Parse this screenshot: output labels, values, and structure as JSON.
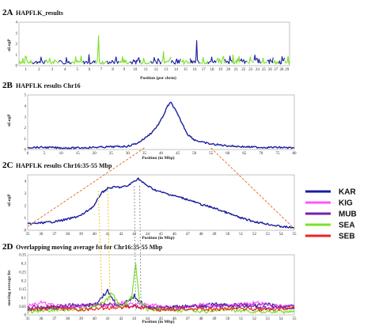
{
  "colors": {
    "blue": "#1a1f9c",
    "green": "#7be02a",
    "orange": "#e8641c",
    "gray": "#8a8a8a",
    "yellow": "#f0c020",
    "axis": "#9a9a9a"
  },
  "legend": {
    "items": [
      {
        "label": "KAR",
        "color": "#1a1f9c"
      },
      {
        "label": "KIG",
        "color": "#ff55ff"
      },
      {
        "label": "MUB",
        "color": "#7a1fa8"
      },
      {
        "label": "SEA",
        "color": "#7be02a"
      },
      {
        "label": "SEB",
        "color": "#ee2222"
      }
    ]
  },
  "chart_data": [
    {
      "panel": "2A",
      "type": "line",
      "title": "HAPFLK_results",
      "xlabel": "Position (per chrm)",
      "ylabel": "nLogP",
      "ylim": [
        0,
        4
      ],
      "yticks": [
        "0",
        "1",
        "2",
        "3",
        "4"
      ],
      "xticks": [
        "1",
        "2",
        "3",
        "4",
        "5",
        "6",
        "7",
        "8",
        "9",
        "10",
        "11",
        "12",
        "13",
        "14",
        "15",
        "16",
        "17",
        "18",
        "19",
        "20",
        "21",
        "22",
        "23",
        "24",
        "25",
        "26",
        "27",
        "28",
        "29"
      ],
      "chromosome_peaks": [
        1.6,
        1.2,
        1.1,
        0.9,
        1.0,
        1.2,
        4.1,
        1.3,
        1.0,
        1.0,
        1.1,
        1.0,
        1.8,
        1.0,
        1.0,
        3.8,
        1.2,
        1.0,
        1.1,
        1.3,
        1.0,
        1.1,
        1.0,
        1.0,
        1.0,
        1.0,
        1.1,
        1.3,
        1.2
      ]
    },
    {
      "panel": "2B",
      "type": "line",
      "title": "HAPFLK results Chr16",
      "xlabel": "Position (in Mbp)",
      "ylabel": "nLogP",
      "ylim": [
        0,
        5
      ],
      "xlim": [
        0,
        80
      ],
      "yticks": [
        "0",
        "1",
        "2",
        "3",
        "4",
        "5"
      ],
      "xticks": [
        "0",
        "5",
        "10",
        "15",
        "20",
        "25",
        "30",
        "35",
        "40",
        "45",
        "50",
        "55",
        "60",
        "65",
        "70",
        "75",
        "80"
      ],
      "x": [
        0,
        5,
        10,
        15,
        20,
        25,
        30,
        33,
        35,
        37,
        39,
        40,
        41,
        42,
        43,
        44,
        45,
        46,
        47,
        48,
        50,
        52,
        55,
        60,
        65,
        70,
        75,
        80
      ],
      "y": [
        0.2,
        0.2,
        0.15,
        0.15,
        0.2,
        0.25,
        0.3,
        0.6,
        1.0,
        1.5,
        2.2,
        2.7,
        3.3,
        4.0,
        4.3,
        3.8,
        3.2,
        2.6,
        2.0,
        1.4,
        0.9,
        0.7,
        0.5,
        0.35,
        0.25,
        0.2,
        0.2,
        0.15
      ]
    },
    {
      "panel": "2C",
      "type": "line",
      "title": "HAPFLK results Chr16:35-55 Mbp",
      "xlabel": "Position (in Mbp)",
      "ylabel": "nLogP",
      "ylim": [
        0,
        4.5
      ],
      "xlim": [
        35,
        55
      ],
      "yticks": [
        "0",
        "1",
        "2",
        "3",
        "4"
      ],
      "xticks": [
        "35",
        "36",
        "37",
        "38",
        "39",
        "40",
        "41",
        "42",
        "43",
        "44",
        "45",
        "46",
        "47",
        "48",
        "49",
        "50",
        "51",
        "52",
        "53",
        "54",
        "55"
      ],
      "x": [
        35,
        36,
        37,
        38,
        39,
        40,
        40.5,
        41,
        41.5,
        42,
        42.5,
        43,
        43.3,
        43.6,
        44,
        44.5,
        45,
        46,
        47,
        48,
        49,
        50,
        51,
        52,
        53,
        54,
        55
      ],
      "y": [
        0.5,
        0.6,
        0.7,
        0.9,
        1.2,
        2.0,
        3.0,
        3.4,
        3.5,
        3.5,
        3.6,
        4.0,
        4.2,
        3.9,
        3.6,
        3.3,
        3.1,
        2.8,
        2.5,
        2.1,
        1.8,
        1.4,
        1.0,
        0.7,
        0.5,
        0.3,
        0.2
      ]
    },
    {
      "panel": "2D",
      "type": "line",
      "title": "Overlapping moving average fst for Chr16:35-55 Mbp",
      "xlabel": "Position (in Mbp)",
      "ylabel": "moving average fst",
      "ylim": [
        0,
        0.35
      ],
      "xlim": [
        35,
        55
      ],
      "yticks": [
        "0",
        "0.05",
        "0.1",
        "0.15",
        "0.2",
        "0.25",
        "0.3",
        "0.35"
      ],
      "xticks": [
        "35",
        "36",
        "37",
        "38",
        "39",
        "40",
        "41",
        "42",
        "43",
        "44",
        "45",
        "46",
        "47",
        "48",
        "49",
        "50",
        "51",
        "52",
        "53",
        "54",
        "55"
      ],
      "series": [
        {
          "name": "KAR",
          "color": "#1a1f9c",
          "x": [
            35,
            37,
            39,
            40,
            41,
            41.5,
            42,
            43,
            44,
            45,
            47,
            49,
            51,
            53,
            55
          ],
          "y": [
            0.03,
            0.04,
            0.05,
            0.06,
            0.14,
            0.08,
            0.05,
            0.11,
            0.04,
            0.04,
            0.05,
            0.06,
            0.05,
            0.06,
            0.04
          ]
        },
        {
          "name": "KIG",
          "color": "#ff55ff",
          "x": [
            35,
            36,
            38,
            40,
            41,
            42,
            44,
            46,
            48,
            50,
            52,
            54,
            55
          ],
          "y": [
            0.05,
            0.07,
            0.04,
            0.06,
            0.05,
            0.07,
            0.06,
            0.04,
            0.06,
            0.05,
            0.07,
            0.05,
            0.06
          ]
        },
        {
          "name": "MUB",
          "color": "#7a1fa8",
          "x": [
            35,
            37,
            39,
            41,
            43,
            45,
            47,
            49,
            51,
            53,
            55
          ],
          "y": [
            0.04,
            0.05,
            0.06,
            0.06,
            0.05,
            0.04,
            0.05,
            0.05,
            0.06,
            0.04,
            0.05
          ]
        },
        {
          "name": "SEA",
          "color": "#7be02a",
          "x": [
            35,
            37,
            39,
            40,
            41,
            41.3,
            42,
            42.8,
            43.1,
            43.4,
            44,
            46,
            48,
            50,
            52,
            55
          ],
          "y": [
            0.02,
            0.03,
            0.03,
            0.05,
            0.09,
            0.13,
            0.04,
            0.1,
            0.3,
            0.08,
            0.03,
            0.03,
            0.02,
            0.03,
            0.02,
            0.02
          ]
        },
        {
          "name": "SEB",
          "color": "#ee2222",
          "x": [
            35,
            37,
            39,
            41,
            43,
            45,
            47,
            49,
            51,
            53,
            55
          ],
          "y": [
            0.03,
            0.04,
            0.03,
            0.04,
            0.05,
            0.03,
            0.04,
            0.03,
            0.04,
            0.03,
            0.04
          ]
        }
      ]
    }
  ]
}
